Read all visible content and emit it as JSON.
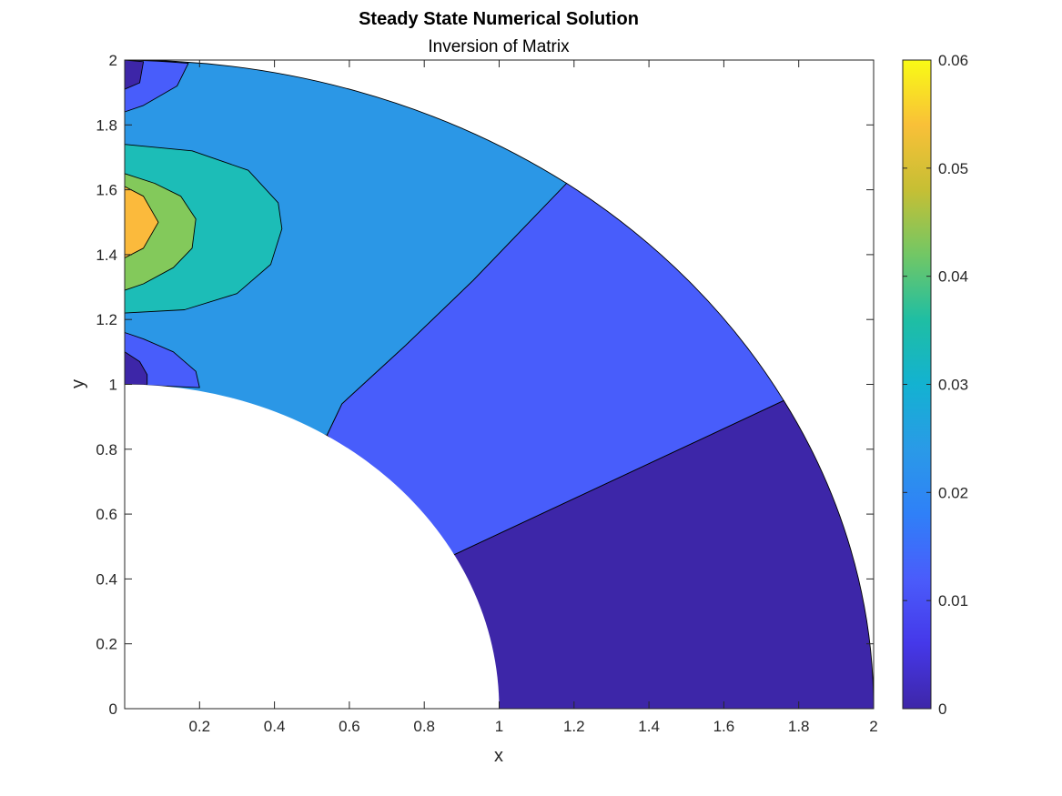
{
  "chart_data": {
    "type": "contourf",
    "title": "Steady State Numerical Solution",
    "subtitle": "Inversion of Matrix",
    "xlabel": "x",
    "ylabel": "y",
    "xlim": [
      0,
      2
    ],
    "ylim": [
      0,
      2
    ],
    "x_ticks": [
      "0.2",
      "0.4",
      "0.6",
      "0.8",
      "1",
      "1.2",
      "1.4",
      "1.6",
      "1.8",
      "2"
    ],
    "y_ticks": [
      "0",
      "0.2",
      "0.4",
      "0.6",
      "0.8",
      "1",
      "1.2",
      "1.4",
      "1.6",
      "1.8",
      "2"
    ],
    "domain": {
      "shape": "quarter annulus",
      "r_inner": 1,
      "r_outer": 2
    },
    "colorbar": {
      "range": [
        0,
        0.06
      ],
      "ticks": [
        "0",
        "0.01",
        "0.02",
        "0.03",
        "0.04",
        "0.05",
        "0.06"
      ],
      "colormap": "parula"
    },
    "level_colors": [
      "#3d26a8",
      "#485dfb",
      "#2b97e6",
      "#1cbdb7",
      "#83c95b",
      "#fbba3c"
    ],
    "regions": [
      {
        "level": 0,
        "polygon": [
          [
            2,
            0
          ],
          [
            1.76,
            0.95
          ],
          [
            0.88,
            0.475
          ],
          [
            1,
            0
          ]
        ]
      },
      {
        "level": 1,
        "polygon": [
          [
            1.76,
            0.95
          ],
          [
            1.18,
            1.62
          ],
          [
            0.93,
            1.32
          ],
          [
            0.75,
            1.12
          ],
          [
            0.58,
            0.94
          ],
          [
            0.54,
            0.843
          ],
          [
            0.88,
            0.475
          ]
        ]
      },
      {
        "level": 2,
        "polygon": [
          [
            0,
            2
          ],
          [
            1.18,
            1.62
          ],
          [
            0.93,
            1.32
          ],
          [
            0.75,
            1.12
          ],
          [
            0.58,
            0.94
          ],
          [
            0.54,
            0.843
          ],
          [
            0,
            1
          ]
        ]
      },
      {
        "level": 1,
        "polygon": [
          [
            0,
            2
          ],
          [
            0.17,
            1.99
          ],
          [
            0.14,
            1.92
          ],
          [
            0.05,
            1.86
          ],
          [
            0,
            1.84
          ]
        ]
      },
      {
        "level": 0,
        "polygon": [
          [
            0,
            2
          ],
          [
            0.05,
            1.995
          ],
          [
            0.04,
            1.93
          ],
          [
            0,
            1.91
          ]
        ]
      },
      {
        "level": 1,
        "polygon": [
          [
            0,
            1.16
          ],
          [
            0.05,
            1.14
          ],
          [
            0.13,
            1.1
          ],
          [
            0.19,
            1.04
          ],
          [
            0.2,
            0.99
          ],
          [
            0,
            1
          ]
        ]
      },
      {
        "level": 0,
        "polygon": [
          [
            0,
            1.1
          ],
          [
            0.04,
            1.07
          ],
          [
            0.06,
            1.03
          ],
          [
            0.06,
            0.998
          ],
          [
            0,
            1
          ]
        ]
      },
      {
        "level": 3,
        "polygon": [
          [
            0,
            1.74
          ],
          [
            0.18,
            1.72
          ],
          [
            0.33,
            1.66
          ],
          [
            0.41,
            1.56
          ],
          [
            0.42,
            1.48
          ],
          [
            0.39,
            1.37
          ],
          [
            0.3,
            1.28
          ],
          [
            0.16,
            1.23
          ],
          [
            0,
            1.22
          ]
        ]
      },
      {
        "level": 4,
        "polygon": [
          [
            0,
            1.65
          ],
          [
            0.08,
            1.62
          ],
          [
            0.15,
            1.58
          ],
          [
            0.19,
            1.51
          ],
          [
            0.18,
            1.42
          ],
          [
            0.13,
            1.36
          ],
          [
            0.05,
            1.31
          ],
          [
            0,
            1.29
          ]
        ]
      },
      {
        "level": 5,
        "polygon": [
          [
            0,
            1.61
          ],
          [
            0.05,
            1.58
          ],
          [
            0.09,
            1.5
          ],
          [
            0.05,
            1.42
          ],
          [
            0,
            1.39
          ]
        ]
      }
    ]
  }
}
